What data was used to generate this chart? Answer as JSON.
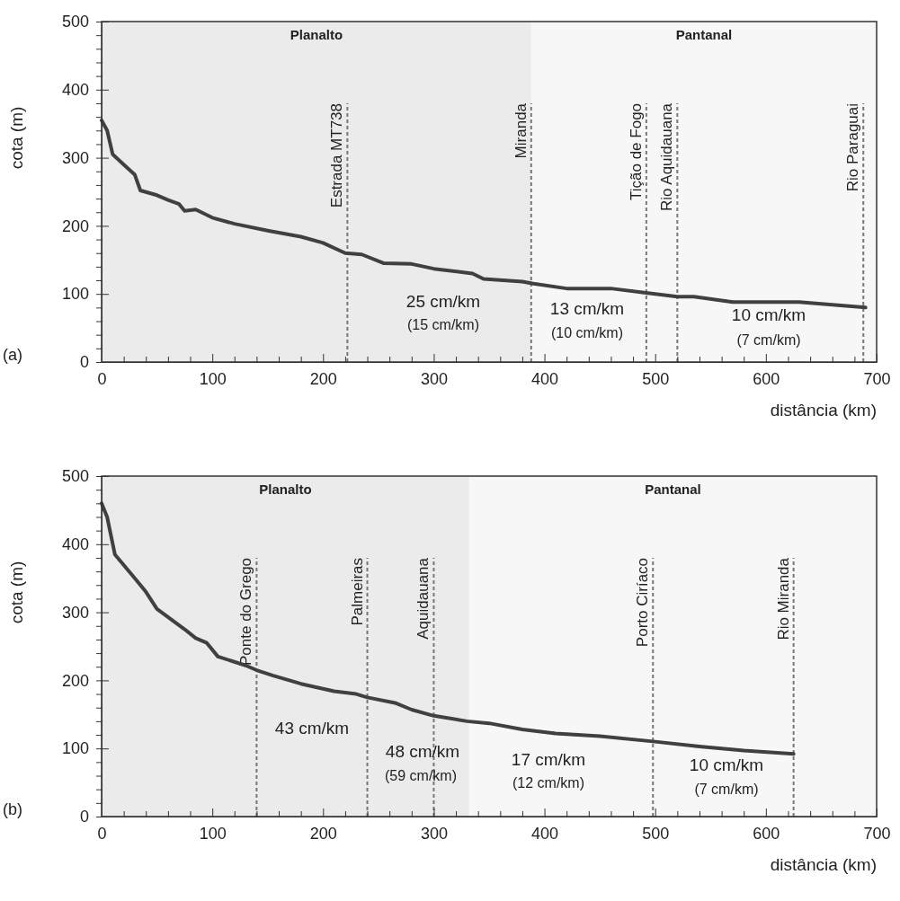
{
  "chart_data": [
    {
      "type": "line",
      "xlabel": "distância (km)",
      "ylabel": "cota (m)",
      "xlim": [
        0,
        700
      ],
      "ylim": [
        0,
        500
      ],
      "xticks": [
        0,
        {
          "value": 20,
          "label": null
        },
        {
          "value": 40,
          "label": null
        },
        {
          "value": 60,
          "label": null
        },
        {
          "value": 80,
          "label": null
        },
        100,
        {
          "value": 120,
          "label": null
        },
        {
          "value": 140,
          "label": null
        },
        {
          "value": 160,
          "label": null
        },
        {
          "value": 180,
          "label": null
        },
        200,
        {
          "value": 220,
          "label": null
        },
        {
          "value": 240,
          "label": null
        },
        {
          "value": 260,
          "label": null
        },
        {
          "value": 280,
          "label": null
        },
        300,
        {
          "value": 320,
          "label": null
        },
        {
          "value": 340,
          "label": null
        },
        {
          "value": 360,
          "label": null
        },
        {
          "value": 380,
          "label": null
        },
        400,
        {
          "value": 420,
          "label": null
        },
        {
          "value": 440,
          "label": null
        },
        {
          "value": 460,
          "label": null
        },
        {
          "value": 480,
          "label": null
        },
        500,
        {
          "value": 520,
          "label": null
        },
        {
          "value": 540,
          "label": null
        },
        {
          "value": 560,
          "label": null
        },
        {
          "value": 580,
          "label": null
        },
        600,
        {
          "value": 620,
          "label": null
        },
        {
          "value": 640,
          "label": null
        },
        {
          "value": 660,
          "label": null
        },
        {
          "value": 680,
          "label": null
        },
        700
      ],
      "yticks": [
        0,
        {
          "value": 20,
          "label": null
        },
        {
          "value": 40,
          "label": null
        },
        {
          "value": 60,
          "label": null
        },
        {
          "value": 80,
          "label": null
        },
        100,
        {
          "value": 120,
          "label": null
        },
        {
          "value": 140,
          "label": null
        },
        {
          "value": 160,
          "label": null
        },
        {
          "value": 180,
          "label": null
        },
        200,
        {
          "value": 220,
          "label": null
        },
        {
          "value": 240,
          "label": null
        },
        {
          "value": 260,
          "label": null
        },
        {
          "value": 280,
          "label": null
        },
        300,
        {
          "value": 320,
          "label": null
        },
        {
          "value": 340,
          "label": null
        },
        {
          "value": 360,
          "label": null
        },
        {
          "value": 380,
          "label": null
        },
        400,
        {
          "value": 420,
          "label": null
        },
        {
          "value": 440,
          "label": null
        },
        {
          "value": 460,
          "label": null
        },
        {
          "value": 480,
          "label": null
        },
        500
      ],
      "bands": [
        {
          "axis": "x",
          "from": 0,
          "to": 388,
          "label": "Planalto",
          "color": "#ebebeb"
        },
        {
          "axis": "x",
          "from": 388,
          "to": 700,
          "label": "Pantanal",
          "color": "#f7f7f7"
        }
      ],
      "ref_lines": [
        {
          "axis": "x",
          "value": 222,
          "label": "Estrada MT738",
          "color": "#777777",
          "line_style": "dashed"
        },
        {
          "axis": "x",
          "value": 388,
          "label": "Miranda",
          "color": "#777777",
          "line_style": "dashed"
        },
        {
          "axis": "x",
          "value": 492,
          "label": "Tição de Fogo",
          "color": "#777777",
          "line_style": "dashed"
        },
        {
          "axis": "x",
          "value": 520,
          "label": "Rio Aquidauana",
          "color": "#777777",
          "line_style": "dashed"
        },
        {
          "axis": "x",
          "value": 688,
          "label": "Rio Paraguai",
          "color": "#777777",
          "line_style": "dashed"
        }
      ],
      "series": [
        {
          "color": "#404040",
          "x": [
            0,
            5,
            10,
            20,
            30,
            35,
            50,
            60,
            70,
            75,
            85,
            100,
            120,
            150,
            180,
            200,
            220,
            235,
            255,
            280,
            300,
            335,
            345,
            380,
            390,
            420,
            460,
            490,
            520,
            535,
            570,
            630,
            690
          ],
          "values": [
            355,
            340,
            305,
            290,
            275,
            252,
            245,
            238,
            232,
            222,
            224,
            212,
            203,
            193,
            184,
            175,
            160,
            158,
            145,
            144,
            137,
            130,
            122,
            118,
            115,
            108,
            108,
            102,
            96,
            96,
            88,
            88,
            80
          ]
        }
      ],
      "annotations": [
        "(a)",
        "25 cm/km",
        "(15 cm/km)",
        "13 cm/km",
        "(10 cm/km)",
        "10 cm/km",
        "(7 cm/km)"
      ]
    },
    {
      "type": "line",
      "xlabel": "distância (km)",
      "ylabel": "cota (m)",
      "xlim": [
        0,
        700
      ],
      "ylim": [
        0,
        500
      ],
      "xticks": [
        0,
        {
          "value": 20,
          "label": null
        },
        {
          "value": 40,
          "label": null
        },
        {
          "value": 60,
          "label": null
        },
        {
          "value": 80,
          "label": null
        },
        100,
        {
          "value": 120,
          "label": null
        },
        {
          "value": 140,
          "label": null
        },
        {
          "value": 160,
          "label": null
        },
        {
          "value": 180,
          "label": null
        },
        200,
        {
          "value": 220,
          "label": null
        },
        {
          "value": 240,
          "label": null
        },
        {
          "value": 260,
          "label": null
        },
        {
          "value": 280,
          "label": null
        },
        300,
        {
          "value": 320,
          "label": null
        },
        {
          "value": 340,
          "label": null
        },
        {
          "value": 360,
          "label": null
        },
        {
          "value": 380,
          "label": null
        },
        400,
        {
          "value": 420,
          "label": null
        },
        {
          "value": 440,
          "label": null
        },
        {
          "value": 460,
          "label": null
        },
        {
          "value": 480,
          "label": null
        },
        500,
        {
          "value": 520,
          "label": null
        },
        {
          "value": 540,
          "label": null
        },
        {
          "value": 560,
          "label": null
        },
        {
          "value": 580,
          "label": null
        },
        600,
        {
          "value": 620,
          "label": null
        },
        {
          "value": 640,
          "label": null
        },
        {
          "value": 660,
          "label": null
        },
        {
          "value": 680,
          "label": null
        },
        700
      ],
      "yticks": [
        0,
        {
          "value": 20,
          "label": null
        },
        {
          "value": 40,
          "label": null
        },
        {
          "value": 60,
          "label": null
        },
        {
          "value": 80,
          "label": null
        },
        100,
        {
          "value": 120,
          "label": null
        },
        {
          "value": 140,
          "label": null
        },
        {
          "value": 160,
          "label": null
        },
        {
          "value": 180,
          "label": null
        },
        200,
        {
          "value": 220,
          "label": null
        },
        {
          "value": 240,
          "label": null
        },
        {
          "value": 260,
          "label": null
        },
        {
          "value": 280,
          "label": null
        },
        300,
        {
          "value": 320,
          "label": null
        },
        {
          "value": 340,
          "label": null
        },
        {
          "value": 360,
          "label": null
        },
        {
          "value": 380,
          "label": null
        },
        400,
        {
          "value": 420,
          "label": null
        },
        {
          "value": 440,
          "label": null
        },
        {
          "value": 460,
          "label": null
        },
        {
          "value": 480,
          "label": null
        },
        500
      ],
      "bands": [
        {
          "axis": "x",
          "from": 0,
          "to": 332,
          "label": "Planalto",
          "color": "#ebebeb"
        },
        {
          "axis": "x",
          "from": 332,
          "to": 700,
          "label": "Pantanal",
          "color": "#f7f7f7"
        }
      ],
      "ref_lines": [
        {
          "axis": "x",
          "value": 140,
          "label": "Ponte do Grego",
          "color": "#777777",
          "line_style": "dashed"
        },
        {
          "axis": "x",
          "value": 240,
          "label": "Palmeiras",
          "color": "#777777",
          "line_style": "dashed"
        },
        {
          "axis": "x",
          "value": 300,
          "label": "Aquidauana",
          "color": "#777777",
          "line_style": "dashed"
        },
        {
          "axis": "x",
          "value": 498,
          "label": "Porto Ciríaco",
          "color": "#777777",
          "line_style": "dashed"
        },
        {
          "axis": "x",
          "value": 625,
          "label": "Rio Miranda",
          "color": "#777777",
          "line_style": "dashed"
        }
      ],
      "series": [
        {
          "color": "#404040",
          "x": [
            0,
            5,
            12,
            30,
            40,
            50,
            75,
            85,
            95,
            105,
            130,
            140,
            155,
            180,
            210,
            230,
            240,
            265,
            280,
            300,
            330,
            350,
            380,
            410,
            450,
            500,
            540,
            580,
            625
          ],
          "values": [
            460,
            440,
            385,
            350,
            330,
            305,
            275,
            262,
            255,
            235,
            222,
            215,
            207,
            195,
            184,
            180,
            175,
            167,
            157,
            148,
            140,
            137,
            128,
            122,
            118,
            110,
            103,
            97,
            92
          ]
        }
      ],
      "annotations": [
        "(b)",
        "43 cm/km",
        "48 cm/km",
        "(59 cm/km)",
        "17 cm/km",
        "(12 cm/km)",
        "10 cm/km",
        "(7 cm/km)"
      ]
    }
  ]
}
